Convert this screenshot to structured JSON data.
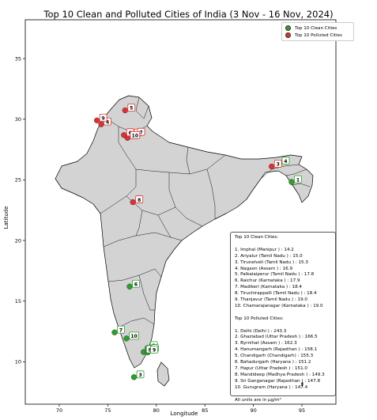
{
  "title": "Top 10 Clean and Polluted Cities of India (3 Nov - 16 Nov, 2024)",
  "xlabel": "Longitude",
  "ylabel": "Latitude",
  "x_ticks": [
    70,
    75,
    80,
    85,
    90,
    95
  ],
  "y_ticks": [
    10,
    15,
    20,
    25,
    30,
    35
  ],
  "legend": {
    "placement": "top-right",
    "items": [
      {
        "label": "Top 10 Clean Cities",
        "color": "#2ca02c"
      },
      {
        "label": "Top 10 Polluted Cities",
        "color": "#e03030"
      }
    ]
  },
  "colors": {
    "land": "#d3d3d3",
    "border": "#000000",
    "clean": "#2ca02c",
    "polluted": "#e03030"
  },
  "chart_data": {
    "type": "map",
    "xlim": [
      66.5,
      98.5
    ],
    "ylim": [
      6.5,
      38.2
    ],
    "clean_cities": [
      {
        "rank": "1",
        "lon": 93.94,
        "lat": 24.82
      },
      {
        "rank": "2",
        "lon": 79.1,
        "lat": 11.14
      },
      {
        "rank": "3",
        "lon": 77.7,
        "lat": 8.73
      },
      {
        "rank": "4",
        "lon": 92.68,
        "lat": 26.35
      },
      {
        "rank": "5",
        "lon": 79.2,
        "lat": 10.9
      },
      {
        "rank": "6",
        "lon": 77.25,
        "lat": 16.2
      },
      {
        "rank": "7",
        "lon": 75.7,
        "lat": 12.42
      },
      {
        "rank": "8",
        "lon": 78.69,
        "lat": 10.8
      },
      {
        "rank": "9",
        "lon": 79.13,
        "lat": 10.78
      },
      {
        "rank": "10",
        "lon": 76.93,
        "lat": 11.92
      }
    ],
    "polluted_cities": [
      {
        "rank": "1",
        "lon": 77.21,
        "lat": 28.61
      },
      {
        "rank": "2",
        "lon": 77.43,
        "lat": 28.67
      },
      {
        "rank": "3",
        "lon": 91.88,
        "lat": 26.1
      },
      {
        "rank": "4",
        "lon": 74.32,
        "lat": 29.58
      },
      {
        "rank": "5",
        "lon": 76.78,
        "lat": 30.73
      },
      {
        "rank": "6",
        "lon": 76.66,
        "lat": 28.69
      },
      {
        "rank": "7",
        "lon": 77.78,
        "lat": 28.73
      },
      {
        "rank": "8",
        "lon": 77.59,
        "lat": 23.16
      },
      {
        "rank": "9",
        "lon": 73.88,
        "lat": 29.9
      },
      {
        "rank": "10",
        "lon": 77.03,
        "lat": 28.46
      }
    ]
  },
  "info_box": {
    "clean_heading": "Top 10 Clean Cities:",
    "clean_lines": [
      "1. Imphal  (Manipur ) : 14.2",
      "2. Ariyalur  (Tamil Nadu ) : 15.0",
      "3. Tirunelveli  (Tamil Nadu ) : 15.3",
      "4. Nagaon  (Assam ) : 16.9",
      "5. Palkalaiperur  (Tamil Nadu ) : 17.8",
      "6. Raichur  (Karnataka ) : 17.9",
      "7. Madikeri  (Karnataka ) : 18.4",
      "8. Tiruchirappalli  (Tamil Nadu ) : 18.4",
      "9. Thanjavur  (Tamil Nadu ) : 19.0",
      "10. Chamarajanagar  (Karnataka ) : 19.0"
    ],
    "polluted_heading": "Top 10 Polluted Cities:",
    "polluted_lines": [
      "1. Delhi  (Delhi ) : 243.3",
      "2. Ghaziabad  (Uttar Pradesh ) : 166.5",
      "3. Byrnihat  (Assam ) : 162.3",
      "4. Hanumangarh  (Rajasthan ) : 158.1",
      "5. Chandigarh  (Chandigarh) : 155.3",
      "6. Bahadurgarh  (Haryana ) : 151.2",
      "7. Hapur  (Uttar Pradesh ) : 151.0",
      "8. Mandideep  (Madhya Pradesh ) : 149.3",
      "9. Sri Ganganagar  (Rajasthan ) : 147.8",
      "10. Gurugram  (Haryana ) : 147.4"
    ],
    "units_note": "All units are in µg/m³"
  },
  "north_arrow": "↟"
}
